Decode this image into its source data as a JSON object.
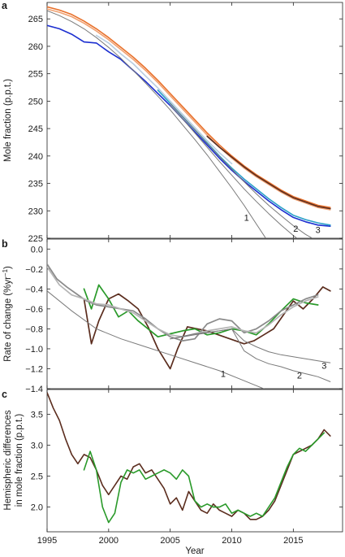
{
  "chart_data": [
    {
      "panel": "a",
      "type": "line",
      "ylabel": "Mole fraction (p.p.t.)",
      "xlim": [
        1995,
        2019
      ],
      "ylim": [
        225,
        268
      ],
      "yticks": [
        225,
        230,
        235,
        240,
        245,
        250,
        255,
        260,
        265
      ],
      "annotations": [
        {
          "text": "1",
          "x": 2011.2,
          "y": 228.2
        },
        {
          "text": "2",
          "x": 2015.2,
          "y": 226.2
        },
        {
          "text": "3",
          "x": 2017.0,
          "y": 226.0
        }
      ],
      "series": [
        {
          "color": "#e8702a",
          "x": [
            1995,
            1996,
            1997,
            1998,
            1999,
            2000,
            2001,
            2002,
            2003,
            2004,
            2005,
            2006,
            2007,
            2008,
            2009,
            2010,
            2011,
            2012,
            2013,
            2014,
            2015,
            2016,
            2017,
            2018
          ],
          "y": [
            267.2,
            266.6,
            265.8,
            264.6,
            263.2,
            261.6,
            259.8,
            258.0,
            256.0,
            253.8,
            251.4,
            249.0,
            246.6,
            244.2,
            242.0,
            240.0,
            238.2,
            236.6,
            235.2,
            233.8,
            232.6,
            231.8,
            231.0,
            230.6
          ]
        },
        {
          "color": "#f0a070",
          "x": [
            1995,
            1996,
            1997,
            1998,
            1999,
            2000,
            2001,
            2002,
            2003,
            2004,
            2005,
            2006,
            2007,
            2008,
            2009,
            2010,
            2011,
            2012,
            2013,
            2014,
            2015,
            2016,
            2017,
            2018
          ],
          "y": [
            266.8,
            266.2,
            265.4,
            264.2,
            262.8,
            261.2,
            259.4,
            257.6,
            255.6,
            253.4,
            251.0,
            248.6,
            246.2,
            243.8,
            241.6,
            239.6,
            237.8,
            236.2,
            234.8,
            233.4,
            232.2,
            231.4,
            230.6,
            230.2
          ]
        },
        {
          "color": "#5b2d1e",
          "x": [
            2008,
            2009,
            2010,
            2011,
            2012,
            2013,
            2014,
            2015,
            2016,
            2017,
            2018
          ],
          "y": [
            243.6,
            241.6,
            239.8,
            238.0,
            236.4,
            235.0,
            233.6,
            232.4,
            231.6,
            230.8,
            230.4
          ]
        },
        {
          "color": "#1c2fd0",
          "x": [
            1995,
            1996,
            1997,
            1998,
            1999,
            2000,
            2001,
            2002,
            2003,
            2004,
            2005,
            2006,
            2007,
            2008,
            2009,
            2010,
            2011,
            2012,
            2013,
            2014,
            2015,
            2016,
            2017,
            2018
          ],
          "y": [
            263.8,
            263.2,
            262.2,
            260.8,
            260.6,
            259.0,
            257.6,
            255.6,
            253.6,
            251.4,
            249.2,
            246.8,
            244.4,
            242.0,
            239.6,
            237.4,
            235.4,
            233.6,
            231.8,
            230.2,
            228.8,
            228.0,
            227.4,
            227.2
          ]
        },
        {
          "color": "#2aa0c8",
          "x": [
            2004,
            2005,
            2006,
            2007,
            2008,
            2009,
            2010,
            2011,
            2012,
            2013,
            2014,
            2015,
            2016,
            2017,
            2018
          ],
          "y": [
            252.0,
            249.6,
            247.2,
            244.8,
            242.4,
            240.0,
            237.8,
            235.8,
            234.0,
            232.2,
            230.6,
            229.2,
            228.4,
            227.8,
            227.4
          ]
        },
        {
          "color": "#b8cde0",
          "x": [
            1999,
            2000,
            2001,
            2002,
            2003,
            2004,
            2005,
            2006,
            2007,
            2008,
            2009,
            2010
          ],
          "y": [
            262.0,
            260.6,
            258.6,
            256.8,
            254.6,
            252.4,
            250.0,
            247.6,
            245.2,
            242.8,
            240.6,
            238.6
          ]
        },
        {
          "color": "#7a7a7a",
          "x": [
            1995,
            1996,
            1997,
            1998,
            1999,
            2000,
            2001,
            2002,
            2003,
            2004,
            2005,
            2006,
            2007,
            2008,
            2009,
            2010,
            2011,
            2012,
            2013
          ],
          "y": [
            266.5,
            265.6,
            264.5,
            263.2,
            261.6,
            259.8,
            257.8,
            255.6,
            253.3,
            250.9,
            248.4,
            245.7,
            243.0,
            240.2,
            237.2,
            234.2,
            231.0,
            227.6,
            224.2
          ]
        },
        {
          "color": "#7a7a7a",
          "x": [
            2005,
            2006,
            2007,
            2008,
            2009,
            2010,
            2011,
            2012,
            2013,
            2014,
            2015,
            2016
          ],
          "y": [
            249.2,
            246.8,
            244.2,
            241.6,
            239.0,
            236.5,
            234.0,
            231.7,
            229.5,
            227.4,
            225.5,
            223.8
          ]
        },
        {
          "color": "#7a7a7a",
          "x": [
            2005,
            2006,
            2007,
            2008,
            2009,
            2010,
            2011,
            2012,
            2013,
            2014,
            2015,
            2016,
            2017
          ],
          "y": [
            249.6,
            247.2,
            244.8,
            242.3,
            239.9,
            237.6,
            235.3,
            233.1,
            231.0,
            229.1,
            227.3,
            225.7,
            224.4
          ]
        }
      ]
    },
    {
      "panel": "b",
      "type": "line",
      "ylabel": "Rate of change (%yr",
      "ylabel_sup": "−1",
      "ylabel_end": ")",
      "xlim": [
        1995,
        2019
      ],
      "ylim": [
        -1.4,
        0.1
      ],
      "yticks": [
        -1.4,
        -1.2,
        -1.0,
        -0.8,
        -0.6,
        -0.4,
        -0.2,
        0.0
      ],
      "ytick_labels": [
        "−1.4",
        "−1.2",
        "−1.0",
        "−0.8",
        "−0.6",
        "−0.4",
        "−0.2",
        "0.0"
      ],
      "annotations": [
        {
          "text": "1",
          "x": 2009.3,
          "y": -1.28
        },
        {
          "text": "2",
          "x": 2015.5,
          "y": -1.3
        },
        {
          "text": "3",
          "x": 2017.5,
          "y": -1.2
        }
      ],
      "series": [
        {
          "color": "#5b2d1e",
          "x": [
            1998,
            1998.6,
            1999.2,
            2000,
            2000.8,
            2001.6,
            2002.4,
            2003.2,
            2004,
            2004.6,
            2005,
            2005.6,
            2006.4,
            2007.2,
            2008,
            2011,
            2011.8,
            2012.6,
            2013.4,
            2014.2,
            2015,
            2015.8,
            2016.6,
            2017.4,
            2018
          ],
          "y": [
            -0.5,
            -0.95,
            -0.72,
            -0.5,
            -0.45,
            -0.52,
            -0.6,
            -0.78,
            -1.0,
            -1.12,
            -1.2,
            -1.0,
            -0.78,
            -0.8,
            -0.82,
            -0.95,
            -0.92,
            -0.86,
            -0.8,
            -0.66,
            -0.52,
            -0.6,
            -0.5,
            -0.38,
            -0.42
          ]
        },
        {
          "color": "#2a9a2a",
          "x": [
            1998,
            1998.6,
            1999.2,
            2000,
            2000.8,
            2001.6,
            2002.4,
            2003.2,
            2004,
            2005,
            2006,
            2007,
            2008,
            2009,
            2010,
            2011,
            2012,
            2013,
            2014,
            2015,
            2016,
            2017
          ],
          "y": [
            -0.4,
            -0.6,
            -0.36,
            -0.5,
            -0.68,
            -0.62,
            -0.72,
            -0.8,
            -0.88,
            -0.85,
            -0.82,
            -0.8,
            -0.86,
            -0.84,
            -0.8,
            -0.82,
            -0.86,
            -0.75,
            -0.62,
            -0.5,
            -0.54,
            -0.56
          ]
        },
        {
          "color": "#8a8a8a",
          "x": [
            1995,
            1995.8,
            1996.6,
            1997.4,
            1998.2,
            1999,
            2000,
            2001,
            2002,
            2003,
            2004,
            2005,
            2006,
            2007,
            2008,
            2009,
            2010,
            2011,
            2012,
            2013,
            2014,
            2015,
            2016,
            2017
          ],
          "y": [
            -0.15,
            -0.3,
            -0.38,
            -0.45,
            -0.52,
            -0.56,
            -0.58,
            -0.6,
            -0.62,
            -0.7,
            -0.8,
            -0.88,
            -0.92,
            -0.9,
            -0.75,
            -0.7,
            -0.72,
            -0.84,
            -0.8,
            -0.72,
            -0.62,
            -0.56,
            -0.5,
            -0.46
          ]
        },
        {
          "color": "#b5b5b5",
          "x": [
            1995,
            1996,
            1997,
            1998,
            1999,
            2000,
            2001,
            2002,
            2003,
            2004,
            2005,
            2006,
            2007,
            2008,
            2009,
            2010,
            2011,
            2012,
            2013,
            2014,
            2015,
            2016,
            2017
          ],
          "y": [
            -0.18,
            -0.36,
            -0.46,
            -0.5,
            -0.55,
            -0.56,
            -0.6,
            -0.64,
            -0.72,
            -0.8,
            -0.86,
            -0.88,
            -0.85,
            -0.82,
            -0.8,
            -0.78,
            -0.82,
            -0.84,
            -0.76,
            -0.66,
            -0.58,
            -0.52,
            -0.48
          ]
        },
        {
          "color": "#7a7a7a",
          "x": [
            1995,
            1997,
            1999,
            2001,
            2003,
            2005,
            2007,
            2009,
            2011,
            2013
          ],
          "y": [
            -0.42,
            -0.62,
            -0.8,
            -0.9,
            -0.98,
            -1.06,
            -1.14,
            -1.22,
            -1.32,
            -1.42
          ]
        },
        {
          "color": "#7a7a7a",
          "x": [
            2005,
            2007,
            2009,
            2010,
            2011,
            2012,
            2013,
            2014,
            2015,
            2016,
            2017,
            2018
          ],
          "y": [
            -0.9,
            -0.85,
            -0.82,
            -0.8,
            -1.02,
            -1.1,
            -1.15,
            -1.18,
            -1.22,
            -1.25,
            -1.28,
            -1.33
          ]
        },
        {
          "color": "#7a7a7a",
          "x": [
            2005,
            2007,
            2009,
            2010,
            2011,
            2012,
            2013,
            2014,
            2015,
            2016,
            2017,
            2018
          ],
          "y": [
            -0.9,
            -0.86,
            -0.82,
            -0.8,
            -0.92,
            -0.98,
            -1.03,
            -1.06,
            -1.08,
            -1.1,
            -1.12,
            -1.14
          ]
        }
      ]
    },
    {
      "panel": "c",
      "type": "line",
      "ylabel": "Hemispheric differences",
      "ylabel2": "in mole fraction (p.p.t.)",
      "xlabel": "Year",
      "xlim": [
        1995,
        2019
      ],
      "ylim": [
        1.6,
        3.9
      ],
      "xticks": [
        1995,
        2000,
        2005,
        2010,
        2015
      ],
      "yticks": [
        2.0,
        2.5,
        3.0,
        3.5
      ],
      "ytick_labels": [
        "2.0",
        "2.5",
        "3.0",
        "3.5"
      ],
      "series": [
        {
          "color": "#5b2d1e",
          "x": [
            1995,
            1995.5,
            1996,
            1996.5,
            1997,
            1997.5,
            1998,
            1998.5,
            1999,
            1999.5,
            2000,
            2000.5,
            2001,
            2001.5,
            2002,
            2002.5,
            2003,
            2003.5,
            2004,
            2004.5,
            2005,
            2005.5,
            2006,
            2006.5,
            2007,
            2007.5,
            2008,
            2008.5,
            2009,
            2009.5,
            2010,
            2010.5,
            2011,
            2011.5,
            2012,
            2012.5,
            2013,
            2013.5,
            2014,
            2014.5,
            2015,
            2015.5,
            2016,
            2016.5,
            2017,
            2017.5,
            2018
          ],
          "y": [
            3.85,
            3.6,
            3.4,
            3.1,
            2.85,
            2.7,
            2.85,
            2.8,
            2.6,
            2.35,
            2.2,
            2.35,
            2.5,
            2.45,
            2.65,
            2.7,
            2.55,
            2.6,
            2.45,
            2.3,
            2.05,
            2.15,
            1.95,
            2.25,
            2.1,
            1.95,
            1.9,
            2.05,
            1.95,
            1.9,
            1.85,
            1.95,
            1.9,
            1.8,
            1.8,
            1.85,
            1.95,
            2.1,
            2.35,
            2.6,
            2.85,
            2.9,
            2.95,
            3.0,
            3.1,
            3.25,
            3.15
          ]
        },
        {
          "color": "#2a9a2a",
          "x": [
            1998,
            1998.5,
            1999,
            1999.5,
            2000,
            2000.5,
            2001,
            2001.5,
            2002,
            2002.5,
            2003,
            2003.5,
            2004,
            2004.5,
            2005,
            2005.5,
            2006,
            2006.5,
            2007,
            2007.5,
            2008,
            2008.5,
            2009,
            2009.5,
            2010,
            2010.5,
            2011,
            2011.5,
            2012,
            2012.5,
            2013,
            2013.5,
            2014,
            2014.5,
            2015,
            2015.5,
            2016,
            2016.5,
            2017,
            2017.5
          ],
          "y": [
            2.6,
            2.9,
            2.6,
            2.0,
            1.75,
            1.9,
            2.4,
            2.6,
            2.55,
            2.6,
            2.45,
            2.5,
            2.55,
            2.6,
            2.55,
            2.45,
            2.6,
            2.5,
            2.1,
            2.0,
            2.05,
            2.0,
            2.0,
            2.05,
            1.9,
            1.95,
            1.9,
            1.85,
            1.9,
            1.85,
            2.0,
            2.15,
            2.4,
            2.65,
            2.85,
            2.95,
            2.9,
            3.0,
            3.1,
            3.2
          ]
        }
      ]
    }
  ]
}
